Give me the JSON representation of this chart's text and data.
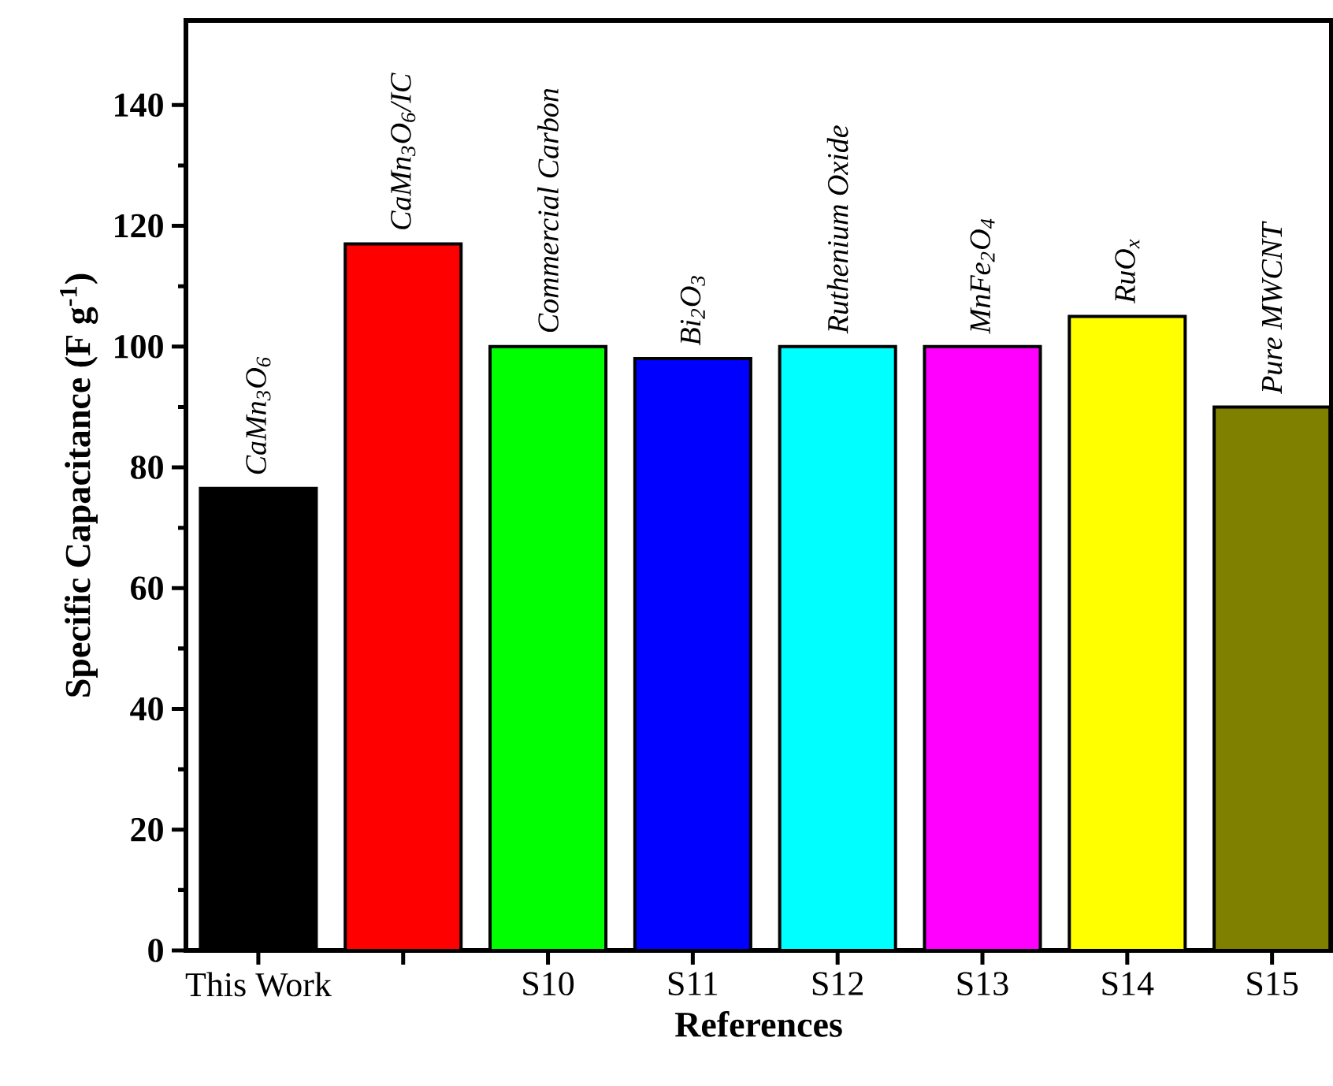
{
  "chart_data": {
    "type": "bar",
    "xlabel": "References",
    "ylabel": "Specific Capacitance (F g$^{-1}$)",
    "categories": [
      "This Work",
      null,
      "S10",
      "S11",
      "S12",
      "S13",
      "S14",
      "S15"
    ],
    "values": [
      76.5,
      117,
      100,
      98,
      100,
      100,
      105,
      90
    ],
    "colors": [
      "#000000",
      "#ff0000",
      "#00ff00",
      "#0000ff",
      "#00ffff",
      "#ff00ff",
      "#ffff00",
      "#808000"
    ],
    "ylim": [
      0,
      154
    ],
    "yticks": [
      0,
      20,
      40,
      60,
      80,
      100,
      120,
      140
    ],
    "annotations": [
      {
        "text": "CaMn$_{3}$O$_{6}$",
        "x": "This Work",
        "y": 76.5
      },
      {
        "text": "CaMn$_{3}$O$_{6}$/IC",
        "y": 117
      },
      {
        "text": "Commercial Carbon",
        "x": "S10",
        "y": 100
      },
      {
        "text": "Bi$_{2}$O$_{3}$",
        "x": "S11",
        "y": 98
      },
      {
        "text": "Ruthenium Oxide",
        "x": "S12",
        "y": 100
      },
      {
        "text": "MnFe$_{2}$O$_{4}$",
        "x": "S13",
        "y": 100
      },
      {
        "text": "RuO$_{x}$",
        "x": "S14",
        "y": 105
      },
      {
        "text": "Pure MWCNT",
        "x": "S15",
        "y": 90
      }
    ]
  }
}
